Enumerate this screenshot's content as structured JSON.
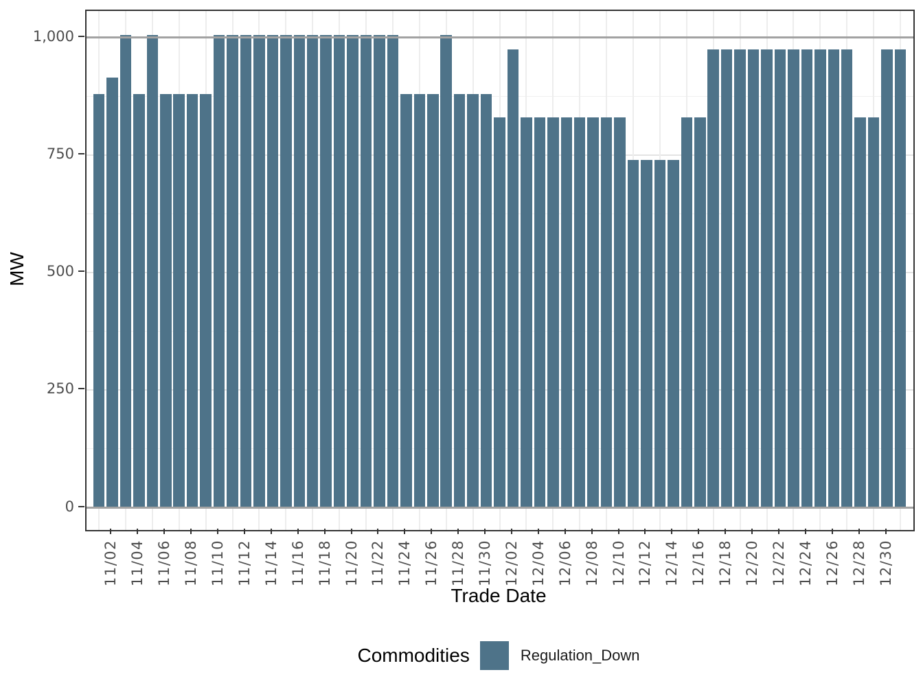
{
  "chart_data": {
    "type": "bar",
    "title": "",
    "xlabel": "Trade Date",
    "ylabel": "MW",
    "x": [
      "11/01",
      "11/02",
      "11/03",
      "11/04",
      "11/05",
      "11/06",
      "11/07",
      "11/08",
      "11/09",
      "11/10",
      "11/11",
      "11/12",
      "11/13",
      "11/14",
      "11/15",
      "11/16",
      "11/17",
      "11/18",
      "11/19",
      "11/20",
      "11/21",
      "11/22",
      "11/23",
      "11/24",
      "11/25",
      "11/26",
      "11/27",
      "11/28",
      "11/29",
      "11/30",
      "12/01",
      "12/02",
      "12/03",
      "12/04",
      "12/05",
      "12/06",
      "12/07",
      "12/08",
      "12/09",
      "12/10",
      "12/11",
      "12/12",
      "12/13",
      "12/14",
      "12/15",
      "12/16",
      "12/17",
      "12/18",
      "12/19",
      "12/20",
      "12/21",
      "12/22",
      "12/23",
      "12/24",
      "12/25",
      "12/26",
      "12/27",
      "12/28",
      "12/29",
      "12/30",
      "12/31"
    ],
    "values": [
      880,
      915,
      1005,
      880,
      1005,
      880,
      880,
      880,
      880,
      1005,
      1005,
      1005,
      1005,
      1005,
      1005,
      1005,
      1005,
      1005,
      1005,
      1005,
      1005,
      1005,
      1005,
      880,
      880,
      880,
      1005,
      880,
      880,
      880,
      830,
      975,
      830,
      830,
      830,
      830,
      830,
      830,
      830,
      830,
      740,
      740,
      740,
      740,
      830,
      830,
      975,
      975,
      975,
      975,
      975,
      975,
      975,
      975,
      975,
      975,
      975,
      830,
      830,
      975,
      975
    ],
    "bar_color": "#4e7389",
    "ylim": [
      0,
      1035
    ],
    "yticks": [
      0,
      250,
      500,
      750,
      1000
    ],
    "ytick_labels": [
      "0",
      "250",
      "500",
      "750",
      "1,000"
    ],
    "ytick_minor": [
      125,
      375,
      625,
      875
    ],
    "xticks_every": 2,
    "xticks_first": "11/02",
    "reference_lines": [
      0,
      1000
    ],
    "grid": "major and minor light-gray horizontal lines; vertical light-gray lines on alternate days; gray reference lines at 0 and 1000 drawn over bars",
    "legend": {
      "position": "bottom",
      "title": "Commodities",
      "entries": [
        "Regulation_Down"
      ]
    }
  }
}
